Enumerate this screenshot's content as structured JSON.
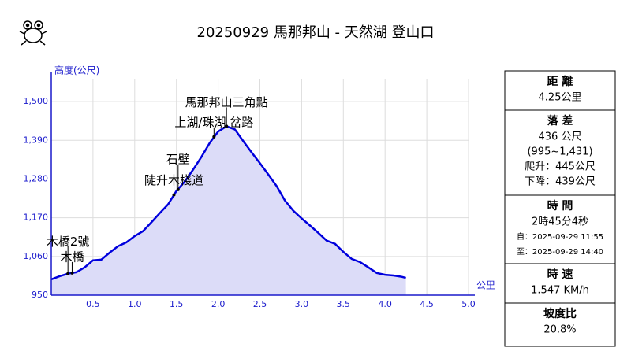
{
  "chart_data": {
    "type": "area",
    "title": "20250929 馬那邦山 - 天然湖 登山口",
    "y_label": "高度(公尺)",
    "x_label": "公里",
    "x": [
      0,
      0.1,
      0.2,
      0.25,
      0.3,
      0.4,
      0.5,
      0.6,
      0.7,
      0.8,
      0.9,
      1.0,
      1.1,
      1.2,
      1.3,
      1.4,
      1.5,
      1.6,
      1.7,
      1.8,
      1.9,
      2.0,
      2.1,
      2.2,
      2.3,
      2.4,
      2.5,
      2.6,
      2.7,
      2.8,
      2.9,
      3.0,
      3.1,
      3.2,
      3.3,
      3.4,
      3.5,
      3.6,
      3.7,
      3.8,
      3.9,
      4.0,
      4.1,
      4.2,
      4.25
    ],
    "values": [
      995,
      1004,
      1011,
      1013,
      1015,
      1029,
      1049,
      1051,
      1071,
      1089,
      1100,
      1118,
      1132,
      1157,
      1183,
      1208,
      1246,
      1273,
      1307,
      1343,
      1383,
      1415,
      1430,
      1421,
      1388,
      1356,
      1325,
      1293,
      1260,
      1219,
      1190,
      1168,
      1148,
      1127,
      1105,
      1096,
      1073,
      1053,
      1044,
      1029,
      1013,
      1008,
      1006,
      1002,
      999
    ],
    "color": "#0000dd",
    "fill": "#dcdcf8",
    "xlim": [
      0,
      5
    ],
    "xticks": [
      0.5,
      {
        "value": 1,
        "label": "1.0"
      },
      1.5,
      {
        "value": 2,
        "label": "2.0"
      },
      2.5,
      {
        "value": 3,
        "label": "3.0"
      },
      3.5,
      {
        "value": 4,
        "label": "4.0"
      },
      4.5,
      {
        "value": 5,
        "label": "5.0"
      }
    ],
    "ylim": [
      950,
      1565
    ],
    "yticks": [
      950,
      {
        "value": 1060,
        "label": "1,060"
      },
      {
        "value": 1170,
        "label": "1,170"
      },
      {
        "value": 1280,
        "label": "1,280"
      },
      {
        "value": 1390,
        "label": "1,390"
      },
      {
        "value": 1500,
        "label": "1,500"
      }
    ],
    "grid": true,
    "waypoints": [
      {
        "name": "木橋2號",
        "x": 0.2,
        "y": 1011,
        "dy": -40
      },
      {
        "name": "木橋",
        "x": 0.25,
        "y": 1013,
        "dy": -20
      },
      {
        "name": "陡升木棧道",
        "x": 1.47,
        "y": 1235,
        "dy": -18
      },
      {
        "name": "石壁",
        "x": 1.52,
        "y": 1250,
        "dy": -38
      },
      {
        "name": "上湖/珠湖 岔路",
        "x": 1.95,
        "y": 1400,
        "dy": -18
      },
      {
        "name": "馬那邦山三角點",
        "x": 2.1,
        "y": 1430,
        "dy": -30
      }
    ]
  },
  "panel": {
    "sections": [
      {
        "title": "距 離",
        "lines": [
          "4.25公里"
        ]
      },
      {
        "title": "落 差",
        "lines": [
          "436 公尺",
          "(995~1,431)",
          "爬升：445公尺",
          "下降：439公尺"
        ]
      },
      {
        "title": "時 間",
        "lines": [
          "2時45分4秒",
          "自：2025-09-29 11:55",
          "至：2025-09-29 14:40"
        ]
      },
      {
        "title": "時 速",
        "lines": [
          "1.547 KM/h"
        ]
      },
      {
        "title": "坡度比",
        "lines": [
          "20.8%"
        ]
      }
    ]
  }
}
